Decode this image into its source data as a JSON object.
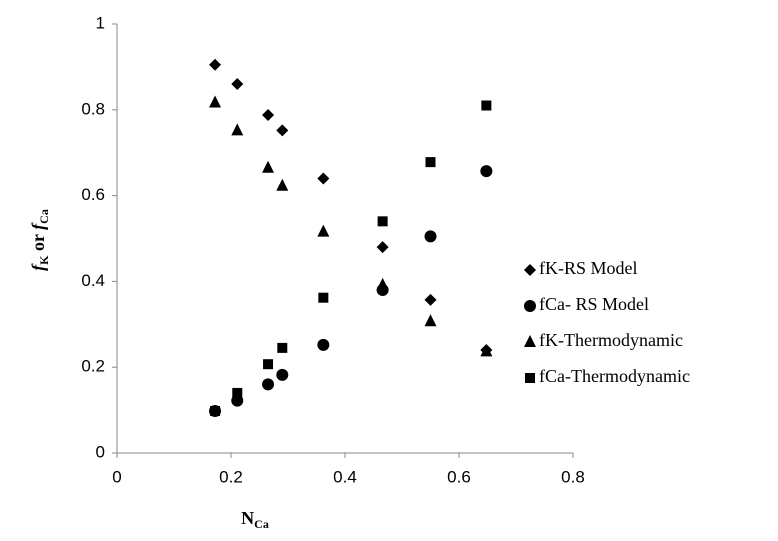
{
  "chart_data": {
    "type": "scatter",
    "x_label": [
      "N",
      "Ca"
    ],
    "y_label": [
      "f",
      "K",
      " or ",
      "f",
      "Ca"
    ],
    "x": [
      0.172,
      0.211,
      0.265,
      0.29,
      0.362,
      0.466,
      0.55,
      0.648
    ],
    "series": [
      {
        "name": "fK-RS Model",
        "color": "#000000",
        "marker": "diamond",
        "values": [
          0.905,
          0.86,
          0.788,
          0.752,
          0.64,
          0.48,
          0.357,
          0.24
        ]
      },
      {
        "name": "fCa- RS Model",
        "color": "#000000",
        "marker": "circle",
        "values": [
          0.098,
          0.122,
          0.16,
          0.182,
          0.252,
          0.38,
          0.505,
          0.657
        ]
      },
      {
        "name": "fK-Thermodynamic",
        "color": "#000000",
        "marker": "triangle",
        "values": [
          0.817,
          0.752,
          0.665,
          0.623,
          0.516,
          0.392,
          0.307,
          0.237
        ]
      },
      {
        "name": "fCa-Thermodynamic",
        "color": "#000000",
        "marker": "square",
        "values": [
          0.098,
          0.14,
          0.207,
          0.245,
          0.362,
          0.54,
          0.678,
          0.81
        ]
      }
    ],
    "xlim": [
      0,
      0.8
    ],
    "xticks": [
      0,
      0.2,
      0.4,
      0.6,
      0.8
    ],
    "ylim": [
      0,
      1
    ],
    "yticks": [
      0,
      0.2,
      0.4,
      0.6,
      0.8,
      1
    ],
    "grid": false,
    "legend": "right"
  }
}
